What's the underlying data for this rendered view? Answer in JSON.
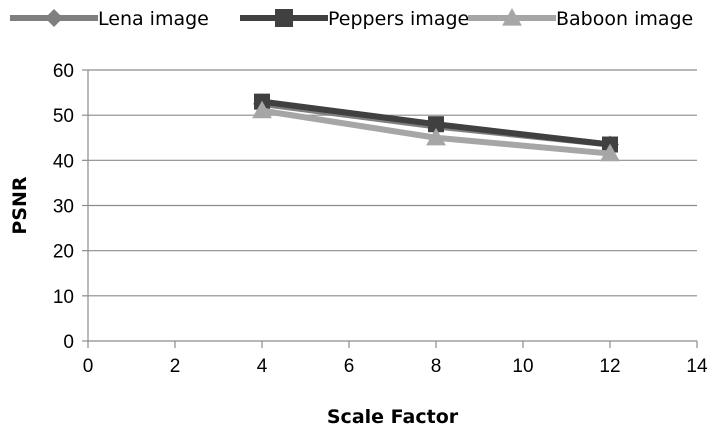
{
  "chart_data": {
    "type": "line",
    "xlabel": "Scale Factor",
    "ylabel": "PSNR",
    "xlim": [
      0,
      14
    ],
    "ylim": [
      0,
      60
    ],
    "xticks": [
      "0",
      "2",
      "4",
      "6",
      "8",
      "10",
      "12",
      "14"
    ],
    "yticks": [
      "0",
      "10",
      "20",
      "30",
      "40",
      "50",
      "60"
    ],
    "grid": "horizontal",
    "legend_position": "top",
    "series": [
      {
        "name": "Lena image",
        "marker": "diamond",
        "color": "#7f7f7f",
        "x": [
          4,
          8,
          12
        ],
        "y": [
          52.5,
          47.5,
          43.5
        ]
      },
      {
        "name": "Peppers image",
        "marker": "square",
        "color": "#404040",
        "x": [
          4,
          8,
          12
        ],
        "y": [
          53,
          48,
          43.5
        ]
      },
      {
        "name": "Baboon image",
        "marker": "triangle",
        "color": "#a6a6a6",
        "x": [
          4,
          8,
          12
        ],
        "y": [
          51,
          45,
          41.5
        ]
      }
    ]
  }
}
